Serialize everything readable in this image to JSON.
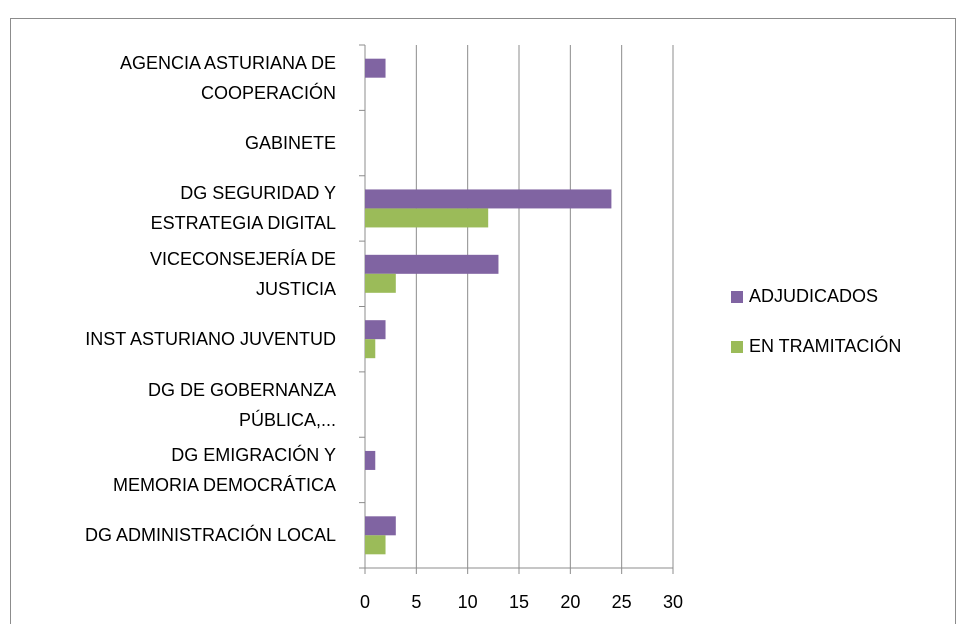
{
  "chart_data": {
    "type": "bar",
    "orientation": "horizontal",
    "categories": [
      "AGENCIA ASTURIANA DE\nCOOPERACIÓN",
      "GABINETE",
      "DG SEGURIDAD Y\nESTRATEGIA DIGITAL",
      "VICECONSEJERÍA DE\nJUSTICIA",
      "INST ASTURIANO JUVENTUD",
      "DG DE GOBERNANZA\nPÚBLICA,...",
      "DG  EMIGRACIÓN Y\nMEMORIA DEMOCRÁTICA",
      "DG ADMINISTRACIÓN LOCAL"
    ],
    "series": [
      {
        "name": "ADJUDICADOS",
        "color": "#8064a2",
        "values": [
          2,
          0,
          24,
          13,
          2,
          0,
          1,
          3
        ]
      },
      {
        "name": "EN TRAMITACIÓN",
        "color": "#9bbb59",
        "values": [
          0,
          0,
          12,
          3,
          1,
          0,
          0,
          2
        ]
      }
    ],
    "xlim": [
      0,
      30
    ],
    "xticks": [
      0,
      5,
      10,
      15,
      20,
      25,
      30
    ],
    "grid": true,
    "legend": "right"
  }
}
